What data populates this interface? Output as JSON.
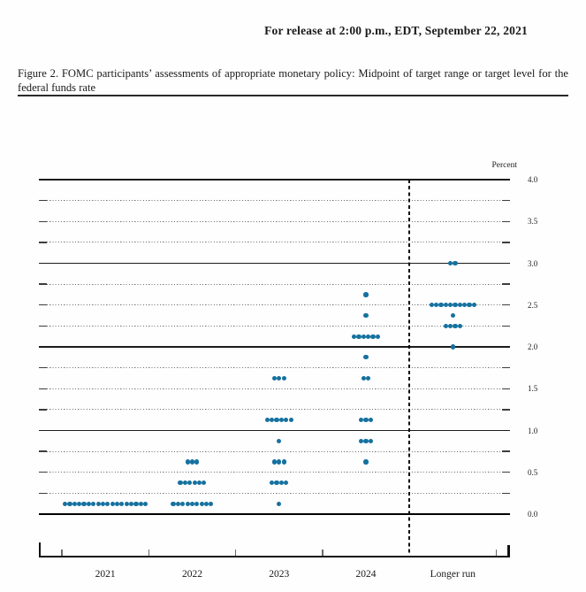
{
  "header": {
    "release_line": "For release at 2:00 p.m., EDT, September 22, 2021"
  },
  "figure": {
    "caption": "Figure 2.  FOMC participants’ assessments of appropriate monetary policy:  Midpoint of target range or target level for the federal funds rate"
  },
  "chart_data": {
    "type": "scatter",
    "subtype": "fomc-dot-plot",
    "title": "FOMC participants’ assessments of appropriate monetary policy: Midpoint of target range or target level for the federal funds rate",
    "ylabel": "Percent",
    "xlabel": "",
    "ylim": [
      0.0,
      4.0
    ],
    "grid_dotted_interval": 0.25,
    "grid_solid_interval": 1.0,
    "legend_position": "none",
    "ytick_labels": [
      "4.0",
      "3.5",
      "3.0",
      "2.5",
      "2.0",
      "1.5",
      "1.0",
      "0.5",
      "0.0"
    ],
    "categories": [
      "2021",
      "2022",
      "2023",
      "2024",
      "Longer run"
    ],
    "divider_after_category": "2024",
    "dot_color": "#15719f",
    "series": [
      {
        "category": "2021",
        "dots": [
          {
            "rate": 0.125,
            "count": 18
          }
        ]
      },
      {
        "category": "2022",
        "dots": [
          {
            "rate": 0.625,
            "count": 3
          },
          {
            "rate": 0.375,
            "count": 6
          },
          {
            "rate": 0.125,
            "count": 9
          }
        ]
      },
      {
        "category": "2023",
        "dots": [
          {
            "rate": 1.625,
            "count": 3
          },
          {
            "rate": 1.125,
            "count": 6
          },
          {
            "rate": 0.875,
            "count": 1
          },
          {
            "rate": 0.625,
            "count": 3
          },
          {
            "rate": 0.375,
            "count": 4
          },
          {
            "rate": 0.125,
            "count": 1
          }
        ]
      },
      {
        "category": "2024",
        "dots": [
          {
            "rate": 2.625,
            "count": 1
          },
          {
            "rate": 2.375,
            "count": 1
          },
          {
            "rate": 2.125,
            "count": 6
          },
          {
            "rate": 1.875,
            "count": 1
          },
          {
            "rate": 1.625,
            "count": 2
          },
          {
            "rate": 1.125,
            "count": 3
          },
          {
            "rate": 0.875,
            "count": 3
          },
          {
            "rate": 0.625,
            "count": 1
          }
        ]
      },
      {
        "category": "Longer run",
        "dots": [
          {
            "rate": 3.0,
            "count": 2
          },
          {
            "rate": 2.5,
            "count": 10
          },
          {
            "rate": 2.375,
            "count": 1
          },
          {
            "rate": 2.25,
            "count": 4
          },
          {
            "rate": 2.0,
            "count": 1
          }
        ]
      }
    ]
  }
}
